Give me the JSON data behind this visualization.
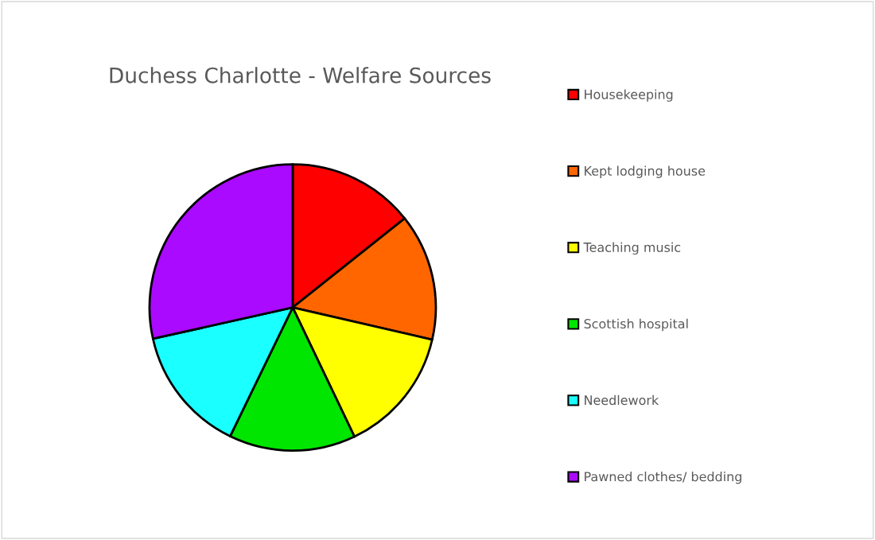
{
  "chart_data": {
    "type": "pie",
    "title": "Duchess Charlotte - Welfare Sources",
    "categories": [
      "Housekeeping",
      "Kept lodging house",
      "Teaching music",
      "Scottish hospital",
      "Needlework",
      "Pawned clothes/ bedding"
    ],
    "values": [
      14.3,
      14.3,
      14.3,
      14.3,
      14.3,
      28.5
    ],
    "colors": [
      "#ff0000",
      "#ff6600",
      "#ffff00",
      "#00e600",
      "#1affff",
      "#aa0aff"
    ],
    "legend": "right"
  }
}
